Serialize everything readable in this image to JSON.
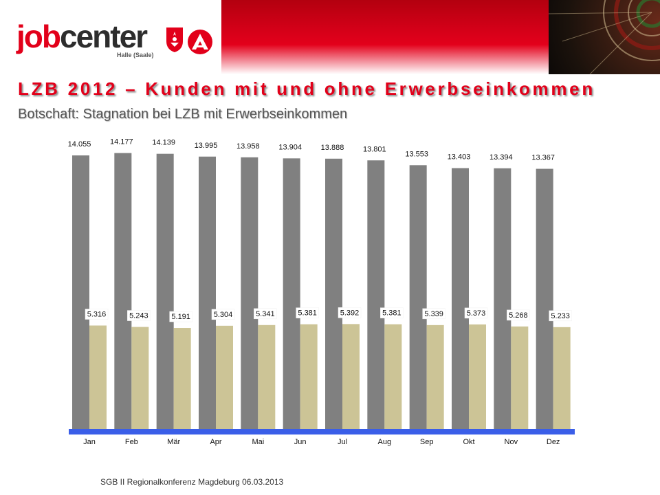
{
  "header": {
    "logo_brand": "jobcenter",
    "logo_location": "Halle (Saale)"
  },
  "slide": {
    "title": "LZB 2012 – Kunden mit und ohne Erwerbseinkommen",
    "subtitle": "Botschaft: Stagnation bei LZB mit Erwerbseinkommen"
  },
  "colors": {
    "brand_red": "#e2001a",
    "series_grey": "#808080",
    "series_khaki": "#ccc496",
    "axis_blue": "#3a5ee8"
  },
  "chart_data": {
    "type": "bar",
    "categories": [
      "Jan",
      "Feb",
      "Mär",
      "Apr",
      "Mai",
      "Jun",
      "Jul",
      "Aug",
      "Sep",
      "Okt",
      "Nov",
      "Dez"
    ],
    "series": [
      {
        "values": [
          14055,
          14177,
          14139,
          13995,
          13958,
          13904,
          13888,
          13801,
          13553,
          13403,
          13394,
          13367
        ],
        "labels": [
          "14.055",
          "14.177",
          "14.139",
          "13.995",
          "13.958",
          "13.904",
          "13.888",
          "13.801",
          "13.553",
          "13.403",
          "13.394",
          "13.367"
        ],
        "color": "#808080"
      },
      {
        "values": [
          5316,
          5243,
          5191,
          5304,
          5341,
          5381,
          5392,
          5381,
          5339,
          5373,
          5268,
          5233
        ],
        "labels": [
          "5.316",
          "5.243",
          "5.191",
          "5.304",
          "5.341",
          "5.381",
          "5.392",
          "5.381",
          "5.339",
          "5.373",
          "5.268",
          "5.233"
        ],
        "color": "#ccc496"
      }
    ],
    "ylim": [
      0,
      16000
    ],
    "grid": false,
    "legend": "none"
  },
  "footer": {
    "text": "SGB II Regionalkonferenz Magdeburg 06.03.2013"
  }
}
